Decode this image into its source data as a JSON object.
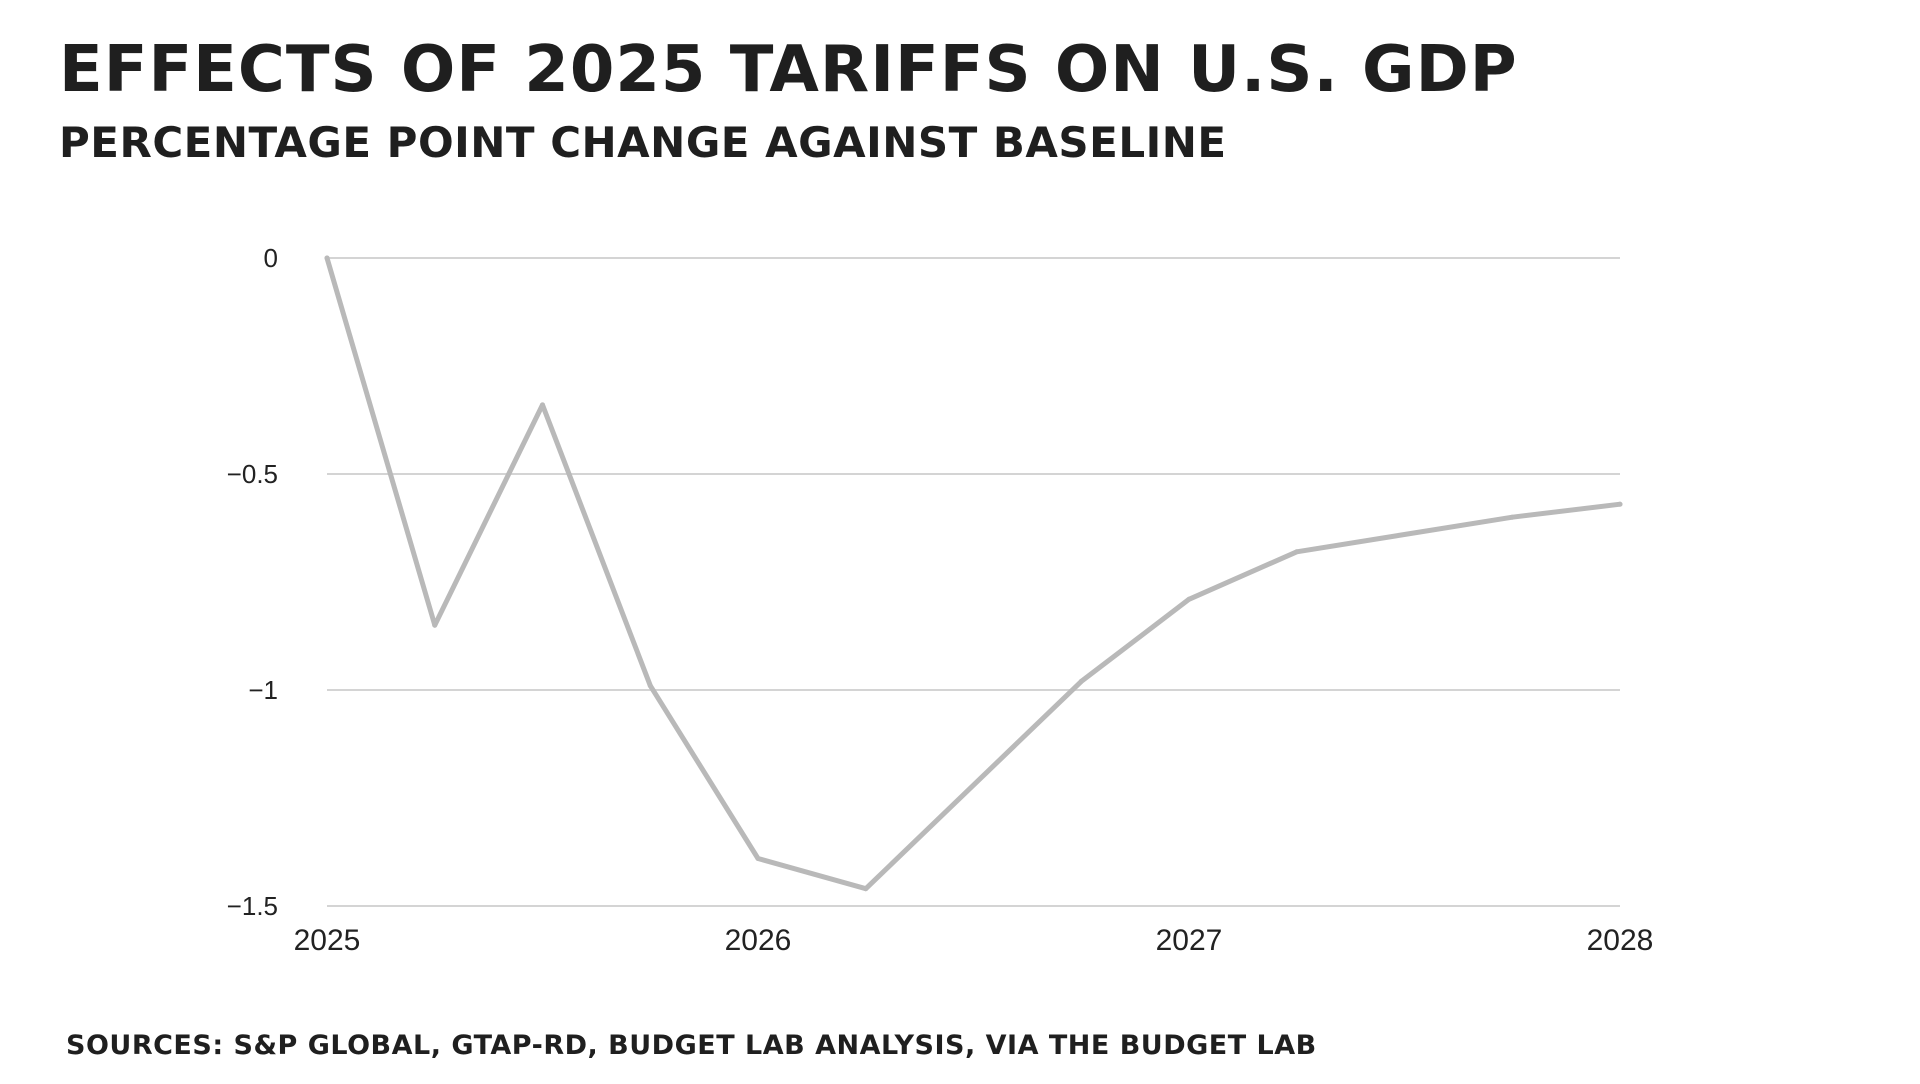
{
  "header": {
    "title": "EFFECTS OF 2025 TARIFFS ON U.S. GDP",
    "subtitle": "PERCENTAGE POINT CHANGE AGAINST BASELINE"
  },
  "footer": {
    "source": "SOURCES: S&P GLOBAL, GTAP-RD, BUDGET LAB ANALYSIS, VIA THE BUDGET LAB"
  },
  "colors": {
    "line": "#b9b9b9",
    "grid": "#d4d4d4",
    "text": "#1f1f1f"
  },
  "chart_data": {
    "type": "line",
    "title": "EFFECTS OF 2025 TARIFFS ON U.S. GDP",
    "subtitle": "PERCENTAGE POINT CHANGE AGAINST BASELINE",
    "xlabel": "",
    "ylabel": "",
    "x": [
      2025.0,
      2025.25,
      2025.5,
      2025.75,
      2026.0,
      2026.25,
      2026.75,
      2027.0,
      2027.25,
      2027.75,
      2028.0
    ],
    "series": [
      {
        "values": [
          0,
          -0.85,
          -0.34,
          -0.99,
          -1.39,
          -1.46,
          -0.98,
          -0.79,
          -0.68,
          -0.6,
          -0.57
        ]
      }
    ],
    "xlim": [
      2025,
      2028
    ],
    "ylim": [
      -1.5,
      0
    ],
    "x_ticks": [
      "2025",
      "2026",
      "2027",
      "2028"
    ],
    "y_ticks": [
      "0",
      "−0.5",
      "−1",
      "−1.5"
    ],
    "grid": true,
    "legend": "none"
  }
}
